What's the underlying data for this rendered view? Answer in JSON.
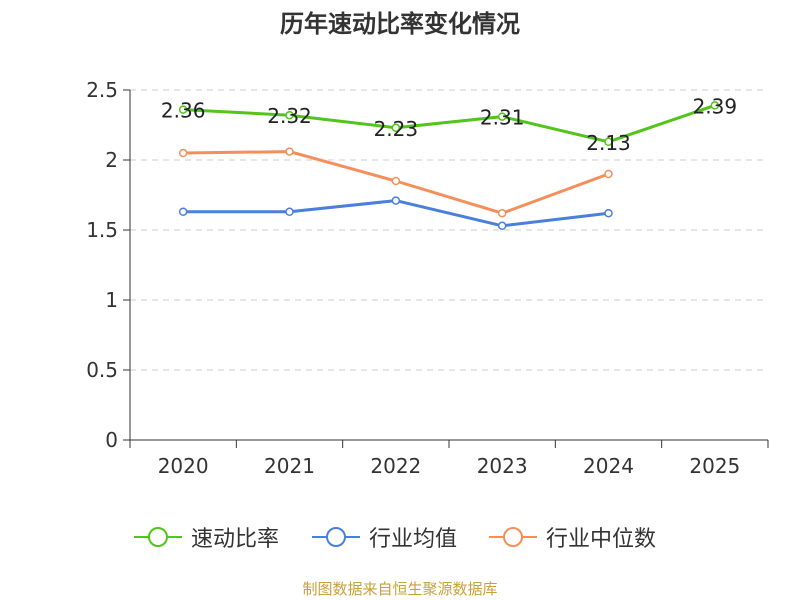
{
  "title": "历年速动比率变化情况",
  "source": "制图数据来自恒生聚源数据库",
  "colors": {
    "quick_ratio": "#52c41a",
    "industry_avg": "#4a7fdc",
    "industry_median": "#f58e5a",
    "axis": "#333333",
    "grid": "#cccccc"
  },
  "chart_data": {
    "type": "line",
    "title": "历年速动比率变化情况",
    "categories": [
      "2020",
      "2021",
      "2022",
      "2023",
      "2024",
      "2025"
    ],
    "ylim": [
      0,
      2.5
    ],
    "yticks": [
      0,
      0.5,
      1,
      1.5,
      2,
      2.5
    ],
    "ytick_labels": [
      "0",
      "0.5",
      "1",
      "1.5",
      "2",
      "2.5"
    ],
    "grid": true,
    "legend_position": "bottom",
    "series": [
      {
        "name": "速动比率",
        "key": "quick_ratio",
        "values": [
          2.36,
          2.32,
          2.23,
          2.31,
          2.13,
          2.39
        ],
        "labels": [
          "2.36",
          "2.32",
          "2.23",
          "2.31",
          "2.13",
          "2.39"
        ],
        "show_labels": true
      },
      {
        "name": "行业均值",
        "key": "industry_avg",
        "values": [
          1.63,
          1.63,
          1.71,
          1.53,
          1.62,
          null
        ],
        "show_labels": false
      },
      {
        "name": "行业中位数",
        "key": "industry_median",
        "values": [
          2.05,
          2.06,
          1.85,
          1.62,
          1.9,
          null
        ],
        "show_labels": false
      }
    ]
  }
}
